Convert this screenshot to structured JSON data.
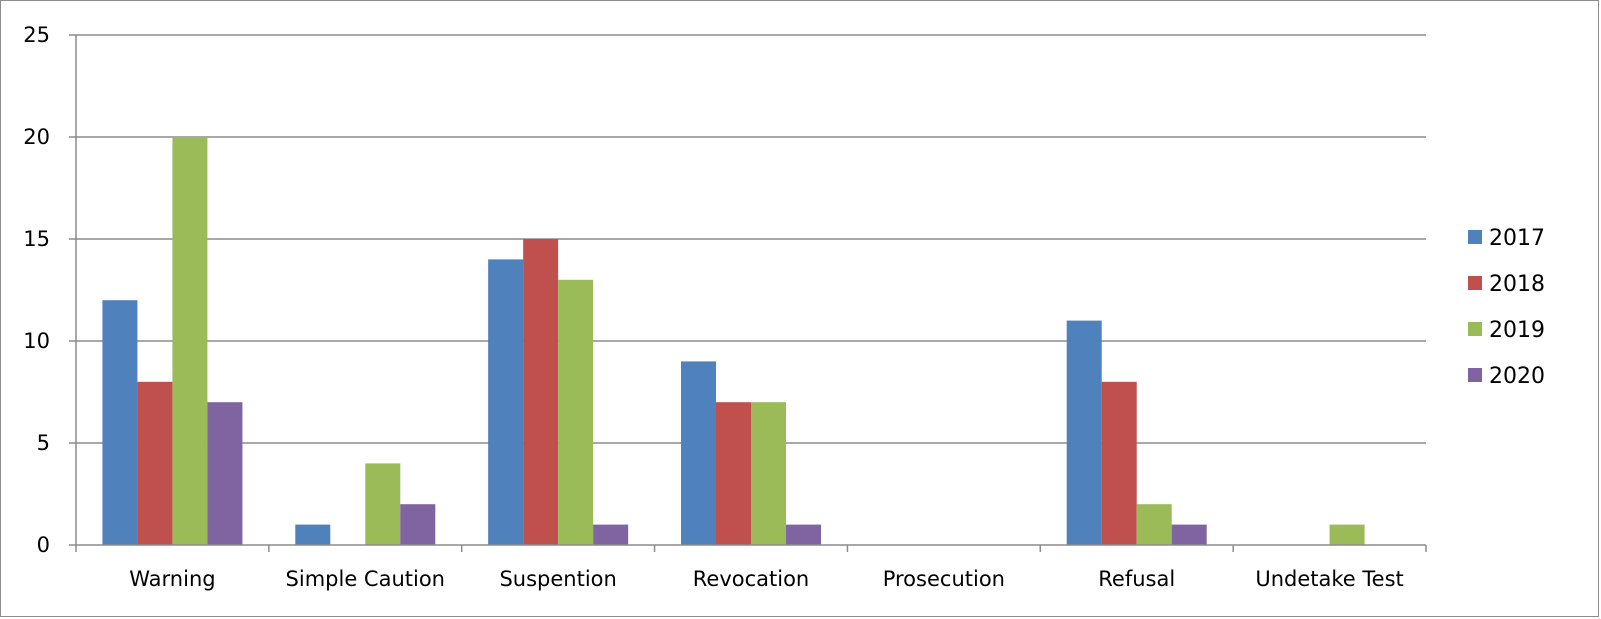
{
  "chart_data": {
    "type": "bar",
    "title": "",
    "xlabel": "",
    "ylabel": "",
    "categories": [
      "Warning",
      "Simple Caution",
      "Suspention",
      "Revocation",
      "Prosecution",
      "Refusal",
      "Undetake Test"
    ],
    "series": [
      {
        "name": "2017",
        "color": "#4f81bd",
        "values": [
          12,
          1,
          14,
          9,
          0,
          11,
          0
        ]
      },
      {
        "name": "2018",
        "color": "#c0504d",
        "values": [
          8,
          0,
          15,
          7,
          0,
          8,
          0
        ]
      },
      {
        "name": "2019",
        "color": "#9bbb59",
        "values": [
          20,
          4,
          13,
          7,
          0,
          2,
          1
        ]
      },
      {
        "name": "2020",
        "color": "#8064a2",
        "values": [
          7,
          2,
          1,
          1,
          0,
          1,
          0
        ]
      }
    ],
    "ylim": [
      0,
      25
    ],
    "yticks": [
      0,
      5,
      10,
      15,
      20,
      25
    ],
    "grid": true,
    "legend_position": "right"
  }
}
